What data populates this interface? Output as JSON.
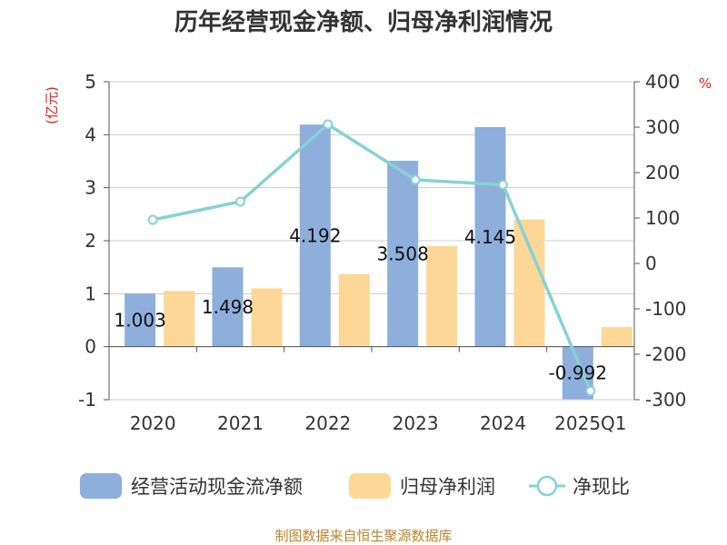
{
  "chart_data": {
    "type": "bar",
    "title": "历年经营现金净额、归母净利润情况",
    "left_unit": "(亿元)",
    "right_unit": "%",
    "categories": [
      "2020",
      "2021",
      "2022",
      "2023",
      "2024",
      "2025Q1"
    ],
    "series": [
      {
        "name": "经营活动现金流净额",
        "type": "bar",
        "axis": "left",
        "color": "#8eaedc",
        "values": [
          1.003,
          1.498,
          4.192,
          3.508,
          4.145,
          -0.992
        ],
        "labels": [
          "1.003",
          "1.498",
          "4.192",
          "3.508",
          "4.145",
          "-0.992"
        ]
      },
      {
        "name": "归母净利润",
        "type": "bar",
        "axis": "left",
        "color": "#fdd796",
        "values": [
          1.05,
          1.1,
          1.37,
          1.9,
          2.4,
          0.37
        ]
      },
      {
        "name": "净现比",
        "type": "line",
        "axis": "right",
        "color": "#86d1d6",
        "values": [
          96,
          136,
          306,
          184,
          173,
          -281
        ]
      }
    ],
    "y_left": {
      "min": -1,
      "max": 5,
      "ticks": [
        "-1",
        "0",
        "1",
        "2",
        "3",
        "4",
        "5"
      ]
    },
    "y_right": {
      "min": -300,
      "max": 400,
      "ticks": [
        "-300",
        "-200",
        "-100",
        "0",
        "100",
        "200",
        "300",
        "400"
      ]
    },
    "grid": true,
    "legend_position": "bottom"
  },
  "source": "制图数据来自恒生聚源数据库"
}
